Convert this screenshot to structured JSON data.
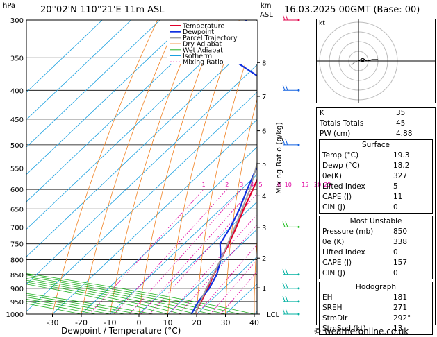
{
  "header": {
    "location": "20°02'N  110°21'E  11m  ASL",
    "datetime": "16.03.2025  00GMT  (Base: 00)",
    "unit_hpa": "hPa",
    "unit_km": "km",
    "unit_asl": "ASL"
  },
  "legend": [
    "Temperature",
    "Dewpoint",
    "Parcel Trajectory",
    "Dry Adiabat",
    "Wet Adiabat",
    "Isotherm",
    "Mixing Ratio"
  ],
  "colors": {
    "temperature": "#e0002a",
    "dewpoint": "#1030e0",
    "parcel": "#a0a0a0",
    "dry_adiabat": "#f08020",
    "wet_adiabat": "#20b020",
    "isotherm": "#1aa0e0",
    "mixing_ratio": "#e000a0"
  },
  "chart_data": {
    "type": "line",
    "xlabel": "Dewpoint / Temperature (°C)",
    "ylabel_right": "Mixing Ratio (g/kg)",
    "x_ticks": [
      -30,
      -20,
      -10,
      0,
      10,
      20,
      30,
      40
    ],
    "pressure_levels": [
      300,
      350,
      400,
      450,
      500,
      550,
      600,
      650,
      700,
      750,
      800,
      850,
      900,
      950,
      1000
    ],
    "km_ticks": [
      {
        "label": "8",
        "p": 357
      },
      {
        "label": "7",
        "p": 410
      },
      {
        "label": "6",
        "p": 472
      },
      {
        "label": "5",
        "p": 540
      },
      {
        "label": "4",
        "p": 616
      },
      {
        "label": "3",
        "p": 701
      },
      {
        "label": "2",
        "p": 795
      },
      {
        "label": "1",
        "p": 898
      },
      {
        "label": "LCL",
        "p": 1000
      }
    ],
    "mixing_ratio_labels": [
      "1",
      "2",
      "3",
      "4",
      "5",
      "8",
      "10",
      "15",
      "20",
      "25"
    ],
    "series": [
      {
        "name": "Temperature",
        "points": [
          [
            1000,
            19.3
          ],
          [
            950,
            17
          ],
          [
            900,
            14.5
          ],
          [
            850,
            11.5
          ],
          [
            800,
            8.5
          ],
          [
            750,
            5.5
          ],
          [
            700,
            2
          ],
          [
            650,
            -2
          ],
          [
            600,
            -6
          ],
          [
            550,
            -10.5
          ],
          [
            500,
            -15.5
          ],
          [
            450,
            -21.5
          ],
          [
            400,
            -28.5
          ],
          [
            350,
            -36
          ],
          [
            300,
            -45
          ]
        ]
      },
      {
        "name": "Dewpoint",
        "points": [
          [
            1000,
            18.2
          ],
          [
            950,
            16
          ],
          [
            900,
            15
          ],
          [
            850,
            12.5
          ],
          [
            800,
            8.5
          ],
          [
            750,
            2.5
          ],
          [
            700,
            0
          ],
          [
            650,
            -3.5
          ],
          [
            600,
            -8
          ],
          [
            550,
            -12.5
          ],
          [
            500,
            -18
          ],
          [
            450,
            -25
          ],
          [
            400,
            -33
          ],
          [
            350,
            -62
          ],
          [
            300,
            -70
          ]
        ]
      },
      {
        "name": "Parcel Trajectory",
        "points": [
          [
            1000,
            19.3
          ],
          [
            900,
            14
          ],
          [
            800,
            8.5
          ],
          [
            700,
            1.5
          ],
          [
            600,
            -7
          ],
          [
            500,
            -19
          ],
          [
            400,
            -34
          ],
          [
            300,
            -54
          ]
        ]
      }
    ]
  },
  "wind_barbs": [
    300,
    400,
    500,
    700,
    850,
    900,
    950,
    1000
  ],
  "indices": [
    {
      "label": "K",
      "value": "35"
    },
    {
      "label": "Totals Totals",
      "value": "45"
    },
    {
      "label": "PW (cm)",
      "value": "4.88"
    }
  ],
  "surface": {
    "title": "Surface",
    "rows": [
      {
        "label": "Temp (°C)",
        "value": "19.3"
      },
      {
        "label": "Dewp (°C)",
        "value": "18.2"
      },
      {
        "label": "θe(K)",
        "value": "327"
      },
      {
        "label": "Lifted Index",
        "value": "5"
      },
      {
        "label": "CAPE (J)",
        "value": "11"
      },
      {
        "label": "CIN (J)",
        "value": "0"
      }
    ]
  },
  "most_unstable": {
    "title": "Most Unstable",
    "rows": [
      {
        "label": "Pressure (mb)",
        "value": "850"
      },
      {
        "label": "θe (K)",
        "value": "338"
      },
      {
        "label": "Lifted Index",
        "value": "0"
      },
      {
        "label": "CAPE (J)",
        "value": "157"
      },
      {
        "label": "CIN (J)",
        "value": "0"
      }
    ]
  },
  "hodograph": {
    "title": "Hodograph",
    "unit": "kt",
    "rows": [
      {
        "label": "EH",
        "value": "181"
      },
      {
        "label": "SREH",
        "value": "271"
      },
      {
        "label": "StmDir",
        "value": "292°"
      },
      {
        "label": "StmSpd (kt)",
        "value": "13"
      }
    ]
  },
  "footer": "© weatheronline.co.uk"
}
